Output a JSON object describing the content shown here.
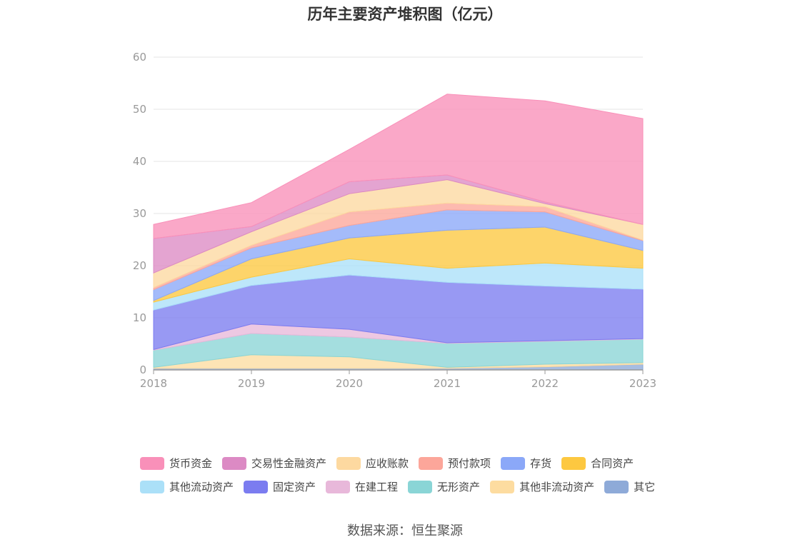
{
  "chart_data": {
    "type": "area",
    "stacked": true,
    "title": "历年主要资产堆积图（亿元）",
    "xlabel": "",
    "ylabel": "",
    "categories": [
      "2018",
      "2019",
      "2020",
      "2021",
      "2022",
      "2023"
    ],
    "ylim": [
      0,
      60
    ],
    "yticks": [
      0,
      10,
      20,
      30,
      40,
      50,
      60
    ],
    "grid": true,
    "legend_position": "bottom",
    "series": [
      {
        "name": "其它",
        "color": "#8eaad8",
        "values": [
          0.3,
          0.3,
          0.3,
          0.3,
          0.6,
          1.1
        ]
      },
      {
        "name": "其他非流动资产",
        "color": "#fddca0",
        "values": [
          0.2,
          2.6,
          2.2,
          0.2,
          0.5,
          0.3
        ]
      },
      {
        "name": "无形资产",
        "color": "#8ad5d6",
        "values": [
          3.3,
          4.1,
          3.8,
          4.6,
          4.4,
          4.5
        ]
      },
      {
        "name": "在建工程",
        "color": "#e8b8da",
        "values": [
          0.1,
          1.8,
          1.5,
          0.1,
          0.1,
          0.1
        ]
      },
      {
        "name": "固定资产",
        "color": "#7b7cf0",
        "values": [
          7.6,
          7.4,
          10.4,
          11.6,
          10.5,
          9.5
        ]
      },
      {
        "name": "其他流动资产",
        "color": "#abe0f8",
        "values": [
          1.5,
          1.6,
          3.1,
          2.7,
          4.4,
          4.0
        ]
      },
      {
        "name": "合同资产",
        "color": "#fdc840",
        "values": [
          0.3,
          3.5,
          4.0,
          7.3,
          6.9,
          3.4
        ]
      },
      {
        "name": "存货",
        "color": "#8ba8f8",
        "values": [
          2.1,
          2.1,
          2.4,
          3.9,
          2.9,
          1.9
        ]
      },
      {
        "name": "预付款项",
        "color": "#fca69a",
        "values": [
          0.4,
          0.5,
          2.6,
          1.3,
          1.0,
          0.1
        ]
      },
      {
        "name": "应收账款",
        "color": "#fdd9a0",
        "values": [
          2.8,
          2.6,
          3.5,
          4.5,
          0.6,
          3.0
        ]
      },
      {
        "name": "交易性金融资产",
        "color": "#dc8ac4",
        "values": [
          6.6,
          1.0,
          2.3,
          0.9,
          0.3,
          0.0
        ]
      },
      {
        "name": "货币资金",
        "color": "#f990b9",
        "values": [
          2.7,
          4.6,
          6.2,
          15.5,
          19.4,
          20.3
        ]
      }
    ],
    "legend_order": [
      "货币资金",
      "交易性金融资产",
      "应收账款",
      "预付款项",
      "存货",
      "合同资产",
      "其他流动资产",
      "固定资产",
      "在建工程",
      "无形资产",
      "其他非流动资产",
      "其它"
    ]
  },
  "source_text": "数据来源：恒生聚源"
}
